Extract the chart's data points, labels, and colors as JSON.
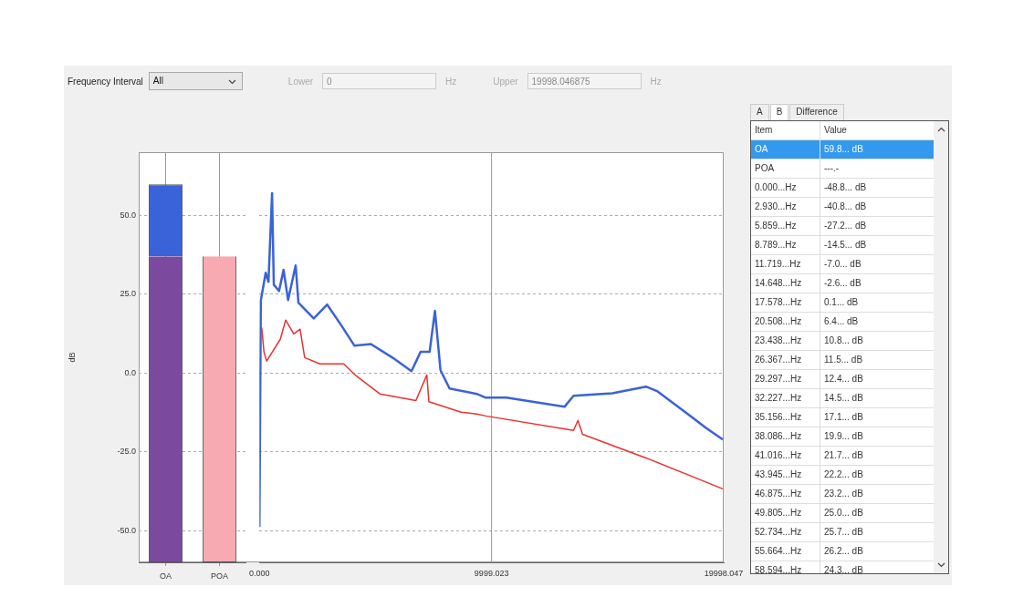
{
  "chart_data": [
    {
      "type": "bar",
      "ylabel": "dB",
      "categories": [
        "OA",
        "POA"
      ],
      "series": [
        {
          "colors": [
            "#7b4a9e",
            "#f7aab1"
          ],
          "values": [
            97,
            97
          ],
          "base": [
            -60,
            -60
          ]
        },
        {
          "color": "#3a62d9",
          "values": [
            22.8,
            null
          ],
          "base": [
            37,
            null
          ]
        }
      ],
      "ylim": [
        -60,
        70
      ],
      "yticks": [
        {
          "value": 50,
          "label": "50.0"
        },
        {
          "value": 25,
          "label": "25.0"
        },
        {
          "value": 0,
          "label": "0.0"
        },
        {
          "value": -25,
          "label": "-25.0"
        },
        {
          "value": -50,
          "label": "-50.0"
        }
      ],
      "grid": true
    },
    {
      "type": "line",
      "marker": "none",
      "tick_labels": "x",
      "grid": "y",
      "ref_lines": [
        {
          "axis": "x",
          "value": 9999.023,
          "color": "#999999"
        }
      ],
      "xlim": [
        0,
        19998.047
      ],
      "xticks": [
        {
          "value": 0,
          "label": "0.000"
        },
        {
          "value": 9999.023,
          "label": "9999.023"
        },
        {
          "value": 19998.047,
          "label": "19998.047"
        }
      ],
      "ylim": [
        -60,
        70
      ],
      "yticks": [
        50,
        25,
        0,
        -25,
        -50
      ],
      "series": [
        {
          "color": "#3a62d9",
          "x": [
            0,
            60,
            270,
            390,
            545,
            620,
            845,
            1040,
            1235,
            1560,
            1680,
            2340,
            2920,
            3510,
            4090,
            4800,
            5730,
            6550,
            6940,
            7330,
            7560,
            7800,
            8190,
            9360,
            9750,
            10640,
            13140,
            13530,
            15200,
            16650,
            17150,
            18200,
            19220,
            19960
          ],
          "values": [
            -48.8,
            23,
            31.8,
            28.9,
            57,
            28,
            26,
            32.7,
            23.1,
            34.1,
            22.3,
            17.3,
            21.7,
            15.3,
            8.7,
            9.2,
            4.9,
            0.6,
            6.7,
            6.7,
            19.7,
            0.9,
            -4.9,
            -6.6,
            -7.8,
            -7.8,
            -10.7,
            -7.2,
            -6.4,
            -4.3,
            -5.8,
            -11.6,
            -17.3,
            -21.1
          ]
        },
        {
          "color": "#e8322f",
          "x": [
            100,
            195,
            310,
            900,
            1130,
            1480,
            1750,
            1950,
            2610,
            3630,
            4170,
            5190,
            6740,
            7210,
            7300,
            8690,
            9360,
            9750,
            13530,
            13720,
            13920,
            16650,
            19960
          ],
          "values": [
            14.4,
            6.7,
            3.8,
            10.7,
            16.8,
            12.4,
            13.9,
            4.9,
            2.9,
            2.9,
            -0.9,
            -6.6,
            -8.7,
            -0.6,
            -9.1,
            -12.4,
            -13,
            -13.6,
            -18.2,
            -15,
            -19.4,
            -26.9,
            -36.7
          ]
        }
      ]
    },
    {
      "type": "other",
      "annotations": [
        "Frequency Interval",
        "All",
        "Lower",
        "0",
        "Hz",
        "Upper",
        "19998.046875",
        "Hz"
      ]
    },
    {
      "type": "other",
      "annotations": [
        "A",
        "B",
        "Difference",
        "Item",
        "Value",
        "OA",
        "59.8... dB",
        "POA",
        "---.-",
        "0.000...Hz",
        "-48.8... dB",
        "2.930...Hz",
        "-40.8... dB",
        "5.859...Hz",
        "-27.2... dB",
        "8.789...Hz",
        "-14.5... dB",
        "11.719...Hz",
        "-7.0... dB",
        "14.648...Hz",
        "-2.6... dB",
        "17.578...Hz",
        "0.1... dB",
        "20.508...Hz",
        "6.4... dB",
        "23.438...Hz",
        "10.8... dB",
        "26.367...Hz",
        "11.5... dB",
        "29.297...Hz",
        "12.4... dB",
        "32.227...Hz",
        "14.5... dB",
        "35.156...Hz",
        "17.1... dB",
        "38.086...Hz",
        "19.9... dB",
        "41.016...Hz",
        "21.7... dB",
        "43.945...Hz",
        "22.2... dB",
        "46.875...Hz",
        "23.2... dB",
        "49.805...Hz",
        "25.0... dB",
        "52.734...Hz",
        "25.7... dB",
        "55.664...Hz",
        "26.2... dB",
        "58.594...Hz",
        "24.3... dB"
      ]
    }
  ]
}
